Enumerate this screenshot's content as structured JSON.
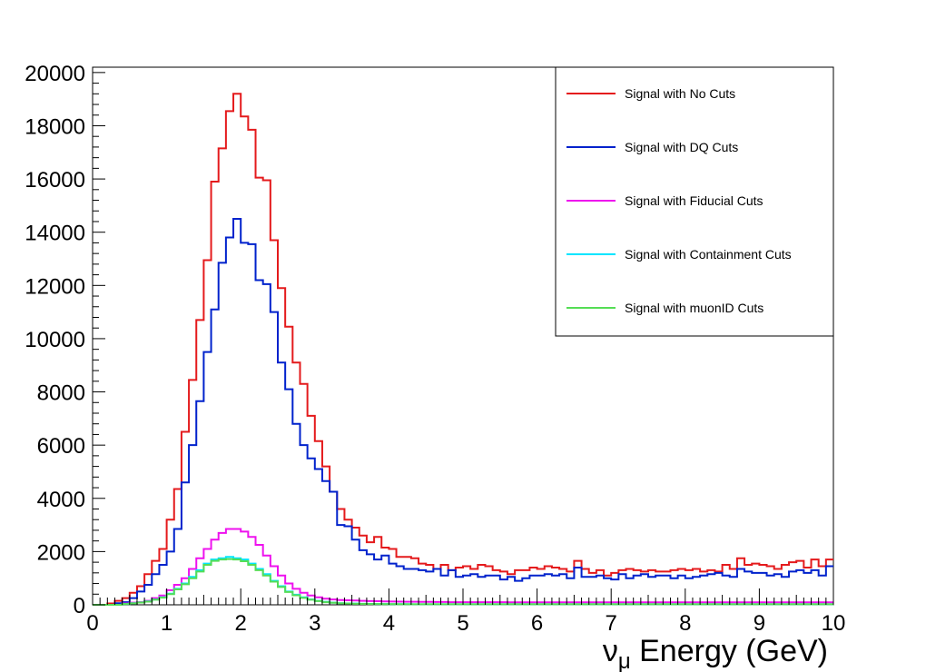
{
  "chart_data": {
    "type": "line",
    "title": "",
    "ylabel": "",
    "xlabel": {
      "symbol": "ν",
      "subscript": "μ",
      "text": " Energy (GeV)"
    },
    "xlim": [
      0,
      10
    ],
    "ylim": [
      0,
      20200
    ],
    "x_ticks": [
      "0",
      "1",
      "2",
      "3",
      "4",
      "5",
      "6",
      "7",
      "8",
      "9",
      "10"
    ],
    "y_ticks": [
      "0",
      "2000",
      "4000",
      "6000",
      "8000",
      "10000",
      "12000",
      "14000",
      "16000",
      "18000",
      "20000"
    ],
    "grid": false,
    "legend_position": "top-right",
    "bin_width": 0.1,
    "series": [
      {
        "name": "Signal with No Cuts",
        "color": "#e41a1c",
        "values": [
          0,
          0,
          50,
          150,
          250,
          450,
          700,
          1150,
          1650,
          2100,
          3200,
          4350,
          6500,
          8450,
          10700,
          12950,
          15900,
          17150,
          18550,
          19200,
          18350,
          17850,
          16050,
          15950,
          13700,
          11900,
          10450,
          9100,
          8300,
          7100,
          6150,
          5200,
          4250,
          3600,
          3200,
          2900,
          2600,
          2350,
          2550,
          2150,
          2100,
          1800,
          1800,
          1750,
          1550,
          1500,
          1350,
          1500,
          1300,
          1400,
          1450,
          1350,
          1500,
          1450,
          1300,
          1250,
          1150,
          1300,
          1300,
          1400,
          1350,
          1450,
          1400,
          1350,
          1250,
          1650,
          1350,
          1200,
          1300,
          1100,
          1200,
          1300,
          1350,
          1300,
          1250,
          1300,
          1250,
          1250,
          1300,
          1350,
          1300,
          1350,
          1250,
          1300,
          1250,
          1500,
          1350,
          1750,
          1500,
          1550,
          1500,
          1450,
          1350,
          1500,
          1600,
          1650,
          1400,
          1700,
          1450,
          1700,
          2000
        ]
      },
      {
        "name": "Signal with DQ Cuts",
        "color": "#0022cc",
        "values": [
          0,
          0,
          0,
          60,
          100,
          250,
          500,
          750,
          1150,
          1500,
          2000,
          2850,
          4600,
          6000,
          7650,
          9500,
          11100,
          12850,
          13800,
          14500,
          13600,
          13550,
          12200,
          12050,
          11000,
          9100,
          8100,
          6800,
          6000,
          5500,
          5100,
          4650,
          4250,
          3000,
          2950,
          2450,
          2050,
          1900,
          1700,
          1850,
          1550,
          1450,
          1350,
          1350,
          1300,
          1250,
          1350,
          1100,
          1300,
          1050,
          1100,
          1150,
          1050,
          1100,
          1100,
          950,
          1050,
          900,
          1000,
          1100,
          1100,
          1150,
          1100,
          1150,
          1000,
          1400,
          1050,
          1050,
          1100,
          1000,
          950,
          1150,
          1000,
          1100,
          1150,
          1050,
          1100,
          1100,
          1000,
          1100,
          1000,
          1050,
          1100,
          1150,
          1200,
          1100,
          1050,
          1350,
          1250,
          1200,
          1200,
          1100,
          1150,
          1050,
          1250,
          1300,
          1200,
          1300,
          1100,
          1450,
          1600
        ]
      },
      {
        "name": "Signal with Fiducial Cuts",
        "color": "#ee11ee",
        "values": [
          0,
          0,
          0,
          0,
          50,
          80,
          100,
          150,
          250,
          350,
          550,
          750,
          1000,
          1350,
          1750,
          2100,
          2450,
          2700,
          2850,
          2850,
          2750,
          2550,
          2250,
          1850,
          1450,
          1100,
          800,
          600,
          450,
          350,
          280,
          230,
          200,
          180,
          170,
          160,
          150,
          140,
          135,
          130,
          125,
          120,
          115,
          115,
          110,
          110,
          105,
          105,
          100,
          100,
          100,
          100,
          100,
          100,
          100,
          100,
          95,
          95,
          95,
          95,
          95,
          95,
          95,
          95,
          95,
          95,
          95,
          95,
          95,
          95,
          95,
          95,
          95,
          95,
          95,
          95,
          95,
          95,
          95,
          95,
          95,
          95,
          95,
          95,
          95,
          95,
          95,
          95,
          95,
          95,
          95,
          95,
          95,
          95,
          95,
          95,
          95,
          95,
          95,
          95
        ]
      },
      {
        "name": "Signal with Containment Cuts",
        "color": "#00e5ff",
        "values": [
          0,
          0,
          0,
          0,
          30,
          60,
          90,
          130,
          200,
          280,
          420,
          600,
          800,
          1050,
          1300,
          1550,
          1700,
          1750,
          1800,
          1750,
          1700,
          1550,
          1350,
          1150,
          900,
          700,
          500,
          380,
          280,
          200,
          150,
          110,
          80,
          60,
          50,
          45,
          40,
          35,
          30,
          30,
          25,
          25,
          25,
          20,
          20,
          20,
          20,
          20,
          20,
          20,
          20,
          20,
          20,
          20,
          20,
          20,
          20,
          20,
          20,
          20,
          20,
          20,
          20,
          20,
          20,
          20,
          20,
          20,
          20,
          20,
          20,
          20,
          20,
          20,
          20,
          20,
          20,
          20,
          20,
          20,
          20,
          20,
          20,
          20,
          20,
          20,
          20,
          20,
          20,
          20,
          20,
          20,
          20,
          20,
          20,
          20,
          20,
          20,
          20,
          20
        ]
      },
      {
        "name": "Signal with muonID Cuts",
        "color": "#55dd55",
        "values": [
          0,
          0,
          0,
          0,
          30,
          55,
          85,
          120,
          190,
          270,
          400,
          580,
          770,
          1000,
          1250,
          1500,
          1650,
          1700,
          1720,
          1700,
          1640,
          1500,
          1300,
          1100,
          870,
          670,
          480,
          360,
          260,
          190,
          140,
          100,
          75,
          55,
          45,
          40,
          35,
          30,
          28,
          26,
          24,
          22,
          20,
          20,
          20,
          20,
          20,
          20,
          20,
          20,
          20,
          20,
          20,
          20,
          20,
          20,
          20,
          20,
          20,
          20,
          20,
          20,
          20,
          20,
          20,
          20,
          20,
          20,
          20,
          20,
          20,
          20,
          20,
          20,
          20,
          20,
          20,
          20,
          20,
          20,
          20,
          20,
          20,
          20,
          20,
          20,
          20,
          20,
          20,
          20,
          20,
          20,
          20,
          20,
          20,
          20,
          20,
          20,
          20,
          20
        ]
      }
    ]
  }
}
